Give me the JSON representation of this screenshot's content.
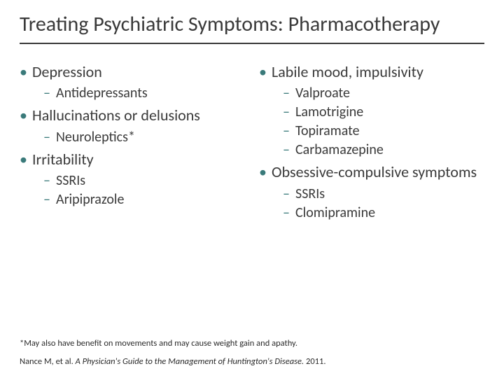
{
  "title": "Treating Psychiatric Symptoms: Pharmacotherapy",
  "left": {
    "t1": "Depression",
    "t1s1": "Antidepressants",
    "t2": "Hallucinations or delusions",
    "t2s1": "Neuroleptics*",
    "t3": "Irritability",
    "t3s1": "SSRIs",
    "t3s2": "Aripiprazole"
  },
  "right": {
    "t1": "Labile mood, impulsivity",
    "t1s1": "Valproate",
    "t1s2": "Lamotrigine",
    "t1s3": "Topiramate",
    "t1s4": "Carbamazepine",
    "t2": "Obsessive-compulsive symptoms",
    "t2s1": "SSRIs",
    "t2s2": "Clomipramine"
  },
  "footnote": "*May also have benefit on movements and may cause weight gain and apathy.",
  "citation_pre": "Nance M, et al. ",
  "citation_ital": "A Physician's Guide to the Management of Huntington's Disease.",
  "citation_post": " 2011.",
  "colors": {
    "bullet": "#3a7a7a",
    "text": "#3a3a3a",
    "rule": "#3a3a3a",
    "bg": "#ffffff"
  },
  "fonts": {
    "title_size": 30,
    "topic_size": 22,
    "sub_size": 20,
    "foot_size": 12.5
  }
}
